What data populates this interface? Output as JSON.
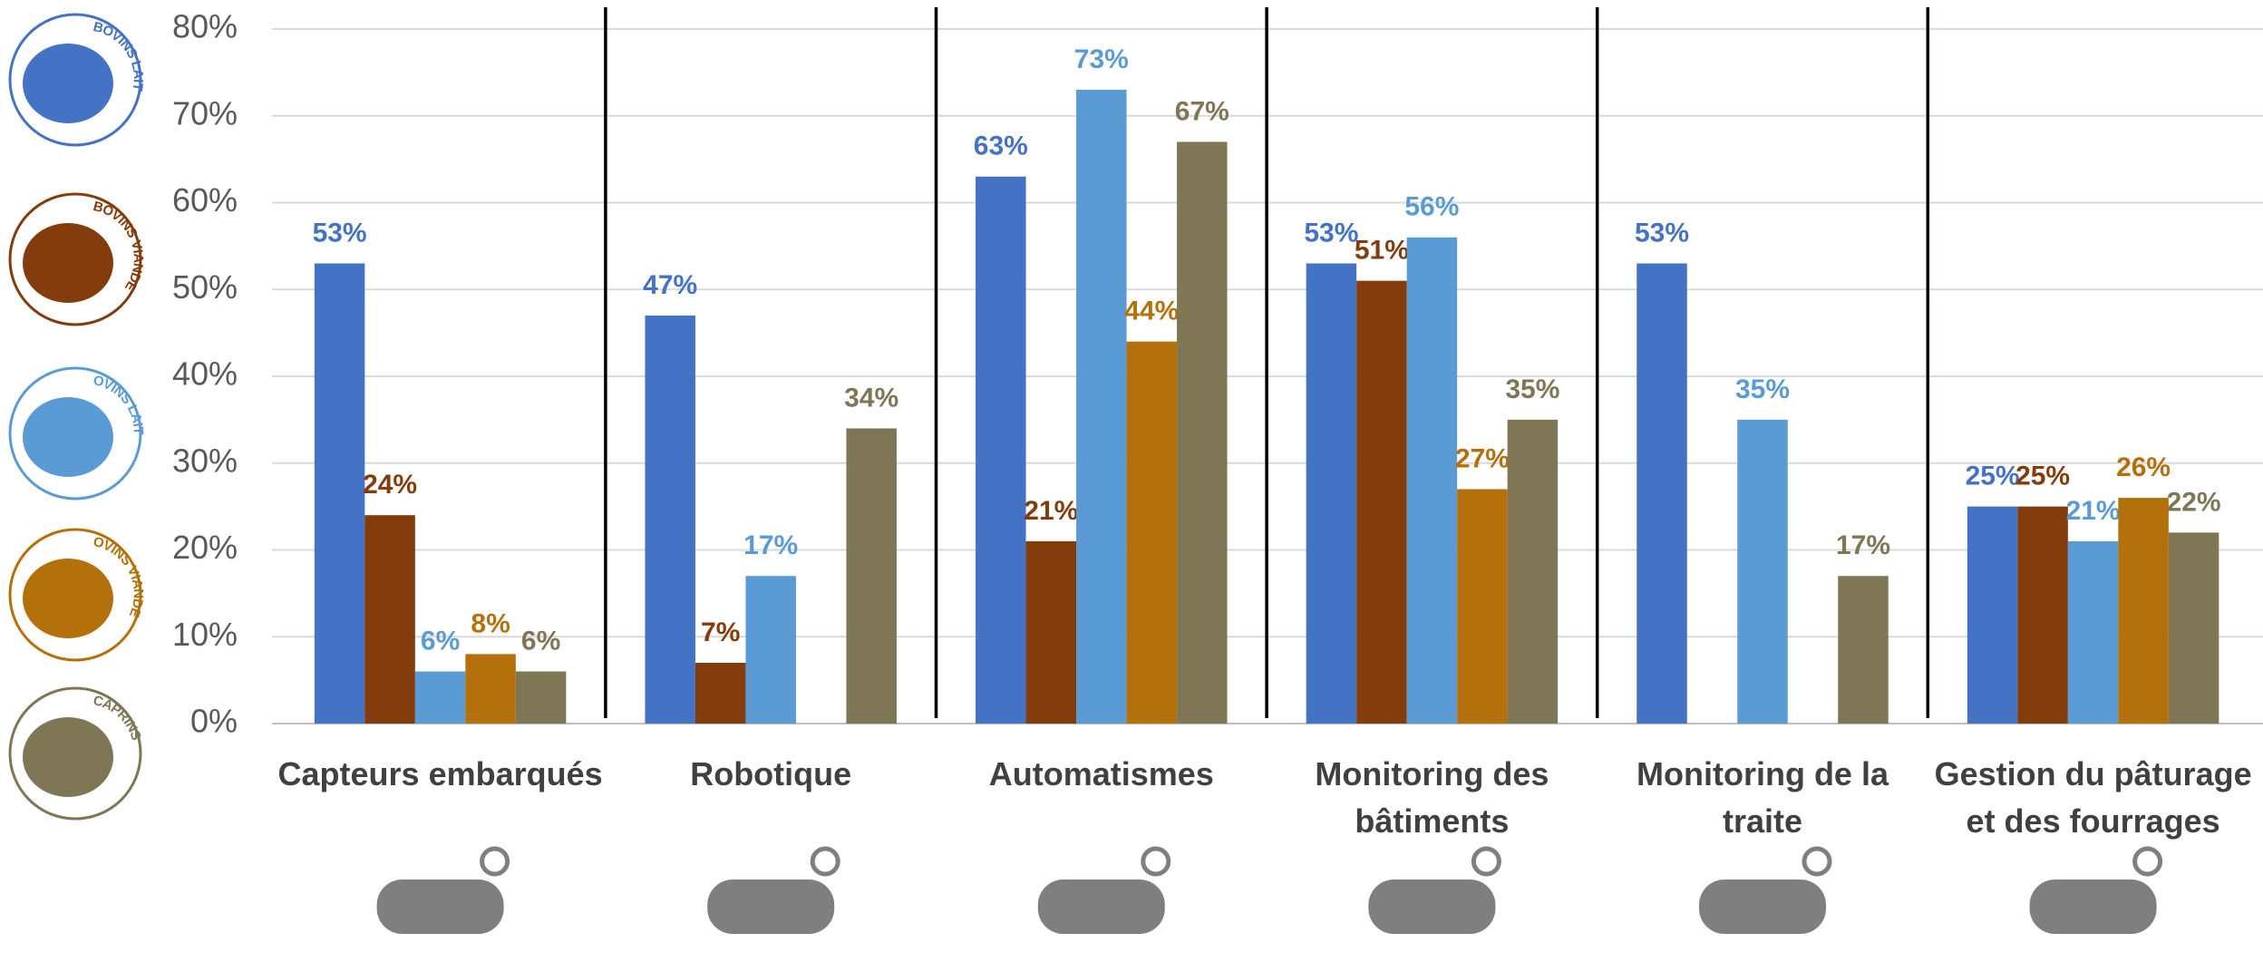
{
  "chart_data": {
    "type": "bar",
    "categories": [
      "Capteurs embarqués",
      "Robotique",
      "Automatismes",
      "Monitoring des bâtiments",
      "Monitoring de la traite",
      "Gestion du pâturage et des fourrages"
    ],
    "series": [
      {
        "name": "BOVINS LAIT",
        "color": "#4472c4",
        "values": [
          53,
          47,
          63,
          53,
          53,
          25
        ],
        "value_labels": [
          "53%",
          "47%",
          "63%",
          "53%",
          "53%",
          "25%"
        ]
      },
      {
        "name": "BOVINS VIANDE",
        "color": "#843c0c",
        "values": [
          24,
          7,
          21,
          51,
          null,
          25
        ],
        "value_labels": [
          "24%",
          "7%",
          "21%",
          "51%",
          null,
          "25%"
        ]
      },
      {
        "name": "OVINS LAIT",
        "color": "#5b9bd5",
        "values": [
          6,
          17,
          73,
          56,
          35,
          21
        ],
        "value_labels": [
          "6%",
          "17%",
          "73%",
          "56%",
          "35%",
          "21%"
        ]
      },
      {
        "name": "OVINS VIANDE",
        "color": "#b4700a",
        "values": [
          8,
          null,
          44,
          27,
          null,
          26
        ],
        "value_labels": [
          "8%",
          null,
          "44%",
          "27%",
          null,
          "26%"
        ]
      },
      {
        "name": "CAPRINS",
        "color": "#7f7656",
        "values": [
          6,
          34,
          67,
          35,
          17,
          22
        ],
        "value_labels": [
          "6%",
          "34%",
          "67%",
          "35%",
          "17%",
          "22%"
        ]
      }
    ],
    "ylim": [
      0,
      80
    ],
    "yticks": [
      {
        "value": 0,
        "label": "0%"
      },
      {
        "value": 10,
        "label": "10%"
      },
      {
        "value": 20,
        "label": "20%"
      },
      {
        "value": 30,
        "label": "30%"
      },
      {
        "value": 40,
        "label": "40%"
      },
      {
        "value": 50,
        "label": "50%"
      },
      {
        "value": 60,
        "label": "60%"
      },
      {
        "value": 70,
        "label": "70%"
      },
      {
        "value": 80,
        "label": "80%"
      }
    ],
    "grid": true
  }
}
